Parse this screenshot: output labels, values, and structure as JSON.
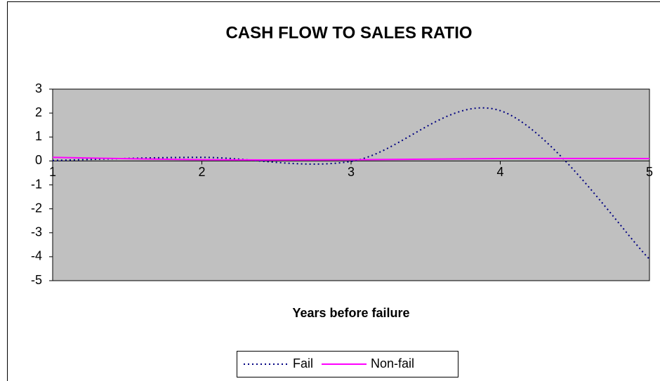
{
  "chart_data": {
    "type": "line",
    "title": "CASH FLOW TO SALES RATIO",
    "x_label": "Years before failure",
    "x": [
      1,
      2,
      3,
      4,
      5
    ],
    "series": [
      {
        "name": "Fail",
        "color": "#000080",
        "dash": "dotted",
        "values": [
          0.02,
          0.15,
          -0.02,
          2.1,
          -4.1
        ]
      },
      {
        "name": "Non-fail",
        "color": "#ff00ff",
        "dash": "solid",
        "values": [
          0.15,
          0.05,
          0.05,
          0.1,
          0.1
        ]
      }
    ],
    "smooth": true,
    "xlim": [
      1,
      5
    ],
    "xticks": [
      1,
      2,
      3,
      4,
      5
    ],
    "ylim": [
      -5,
      3
    ],
    "yticks": [
      -5,
      -4,
      -3,
      -2,
      -1,
      0,
      1,
      2,
      3
    ],
    "plot_background": "#c0c0c0",
    "legend": "bottom"
  }
}
